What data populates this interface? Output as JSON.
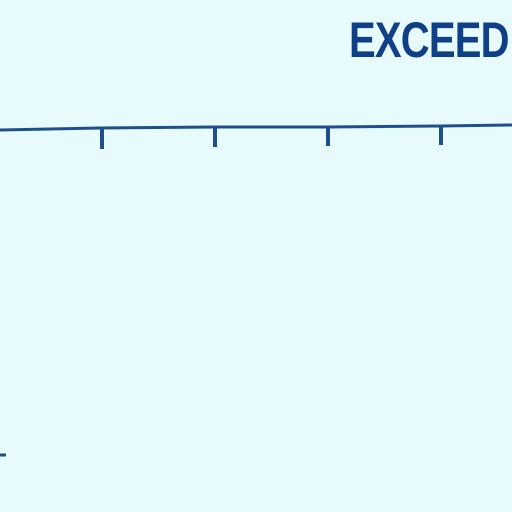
{
  "headline": {
    "text": "EXCEED"
  },
  "colors": {
    "background": "#e7fbfd",
    "ink": "#0f3f86",
    "line": "#1e4f8d"
  },
  "timeline": {
    "tick_count": 4
  }
}
